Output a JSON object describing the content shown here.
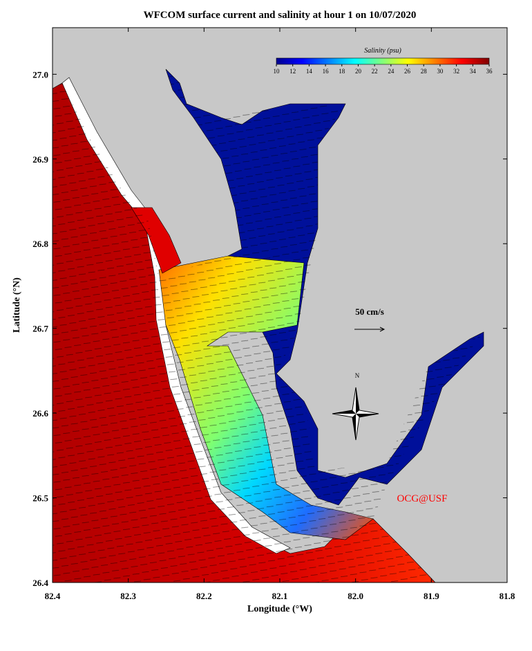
{
  "map": {
    "title": "WFCOM surface current and salinity at hour 1 on 10/07/2020",
    "xlabel": "Longitude (°W)",
    "ylabel": "Latitude (°N)",
    "xlim": [
      82.4,
      81.8
    ],
    "ylim": [
      26.4,
      27.055
    ],
    "xticks": [
      82.4,
      82.3,
      82.2,
      82.1,
      {
        "value": 82.0,
        "label": "82.0"
      },
      81.9,
      81.8
    ],
    "yticks": [
      26.4,
      26.5,
      26.6,
      26.7,
      26.8,
      26.9,
      {
        "value": 27.0,
        "label": "27.0"
      }
    ],
    "colorbar": {
      "label": "Salinity (psu)",
      "range": [
        10,
        36
      ],
      "ticks": [
        10,
        12,
        14,
        16,
        18,
        20,
        22,
        24,
        26,
        28,
        30,
        32,
        34,
        36
      ]
    },
    "scale_label": "50 cm/s",
    "compass_label": "N",
    "credit": "OCG@USF"
  }
}
